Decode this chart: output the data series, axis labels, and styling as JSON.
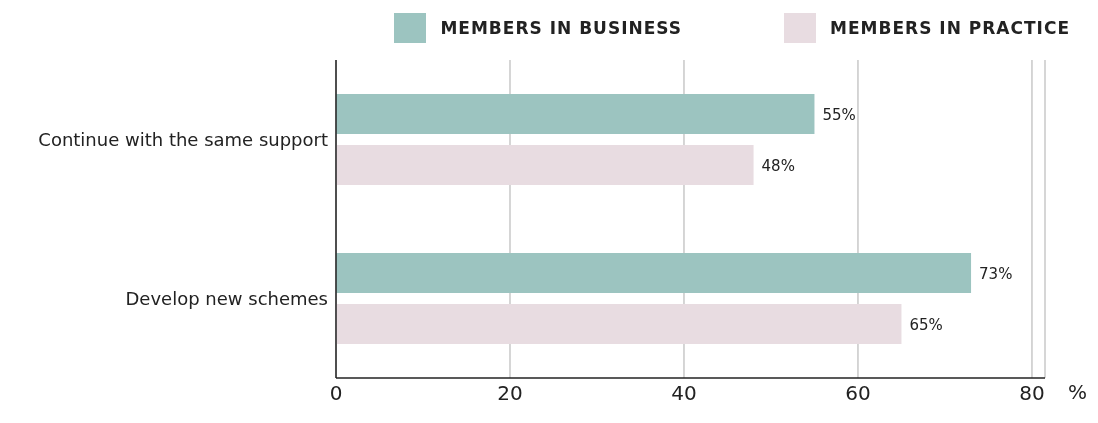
{
  "chart_data": {
    "type": "bar",
    "orientation": "horizontal",
    "categories": [
      "Continue with the same support",
      "Develop new schemes"
    ],
    "series": [
      {
        "name": "MEMBERS IN BUSINESS",
        "color": "#9cc4c0",
        "values": [
          55,
          73
        ],
        "value_labels": [
          "55%",
          "73%"
        ]
      },
      {
        "name": "MEMBERS IN PRACTICE",
        "color": "#e8dce1",
        "values": [
          48,
          65
        ],
        "value_labels": [
          "48%",
          "65%"
        ]
      }
    ],
    "xlabel": "%",
    "xlim": [
      0,
      81.5
    ],
    "xticks": [
      0,
      20,
      40,
      60,
      80
    ],
    "grid": "x",
    "legend": "top"
  }
}
